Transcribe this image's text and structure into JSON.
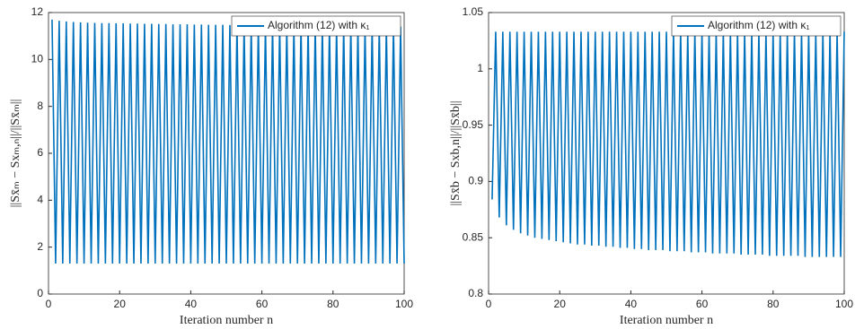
{
  "chart_data": [
    {
      "type": "line",
      "xlabel": "Iteration number n",
      "ylabel": "||Sx̄ₘ − Sxₘ,ₙ||/||Sx̄ₘ||",
      "legend": "upper right",
      "x": [
        1,
        2,
        3,
        4,
        5,
        6,
        7,
        8,
        9,
        10,
        11,
        12,
        13,
        14,
        15,
        16,
        17,
        18,
        19,
        20,
        21,
        22,
        23,
        24,
        25,
        26,
        27,
        28,
        29,
        30,
        31,
        32,
        33,
        34,
        35,
        36,
        37,
        38,
        39,
        40,
        41,
        42,
        43,
        44,
        45,
        46,
        47,
        48,
        49,
        50,
        51,
        52,
        53,
        54,
        55,
        56,
        57,
        58,
        59,
        60,
        61,
        62,
        63,
        64,
        65,
        66,
        67,
        68,
        69,
        70,
        71,
        72,
        73,
        74,
        75,
        76,
        77,
        78,
        79,
        80,
        81,
        82,
        83,
        84,
        85,
        86,
        87,
        88,
        89,
        90,
        91,
        92,
        93,
        94,
        95,
        96,
        97,
        98,
        99,
        100
      ],
      "series": [
        {
          "name": "Algorithm (12) with κ₁",
          "color": "#0072bd",
          "values": [
            11.7,
            1.3,
            11.65,
            1.3,
            11.62,
            1.3,
            11.6,
            1.3,
            11.58,
            1.3,
            11.57,
            1.3,
            11.56,
            1.3,
            11.55,
            1.3,
            11.55,
            1.3,
            11.54,
            1.3,
            11.54,
            1.3,
            11.53,
            1.3,
            11.53,
            1.3,
            11.52,
            1.3,
            11.52,
            1.3,
            11.51,
            1.3,
            11.51,
            1.3,
            11.5,
            1.3,
            11.5,
            1.3,
            11.5,
            1.3,
            11.49,
            1.3,
            11.49,
            1.3,
            11.48,
            1.3,
            11.48,
            1.3,
            11.48,
            1.3,
            11.47,
            1.3,
            11.47,
            1.3,
            11.47,
            1.3,
            11.46,
            1.3,
            11.46,
            1.3,
            11.46,
            1.3,
            11.45,
            1.3,
            11.45,
            1.3,
            11.45,
            1.3,
            11.44,
            1.3,
            11.44,
            1.3,
            11.44,
            1.3,
            11.43,
            1.3,
            11.43,
            1.3,
            11.43,
            1.3,
            11.42,
            1.3,
            11.42,
            1.3,
            11.42,
            1.3,
            11.41,
            1.3,
            11.41,
            1.3,
            11.41,
            1.3,
            11.4,
            1.3,
            11.4,
            1.3,
            11.4,
            1.3,
            11.4,
            1.3
          ]
        }
      ],
      "xlim": [
        0,
        100
      ],
      "xticks": [
        0,
        20,
        40,
        60,
        80,
        100
      ],
      "ylim": [
        0,
        12
      ],
      "yticks": [
        0,
        2,
        4,
        6,
        8,
        10,
        12
      ]
    },
    {
      "type": "line",
      "xlabel": "Iteration number n",
      "ylabel": "||Sx̄b − Sxb,n||/||Sx̄b||",
      "legend": "upper right",
      "x": [
        1,
        2,
        3,
        4,
        5,
        6,
        7,
        8,
        9,
        10,
        11,
        12,
        13,
        14,
        15,
        16,
        17,
        18,
        19,
        20,
        21,
        22,
        23,
        24,
        25,
        26,
        27,
        28,
        29,
        30,
        31,
        32,
        33,
        34,
        35,
        36,
        37,
        38,
        39,
        40,
        41,
        42,
        43,
        44,
        45,
        46,
        47,
        48,
        49,
        50,
        51,
        52,
        53,
        54,
        55,
        56,
        57,
        58,
        59,
        60,
        61,
        62,
        63,
        64,
        65,
        66,
        67,
        68,
        69,
        70,
        71,
        72,
        73,
        74,
        75,
        76,
        77,
        78,
        79,
        80,
        81,
        82,
        83,
        84,
        85,
        86,
        87,
        88,
        89,
        90,
        91,
        92,
        93,
        94,
        95,
        96,
        97,
        98,
        99,
        100
      ],
      "series": [
        {
          "name": "Algorithm (12) with κ₁",
          "color": "#0072bd",
          "values": [
            0.884,
            1.033,
            0.868,
            1.033,
            0.861,
            1.033,
            0.857,
            1.033,
            0.854,
            1.033,
            0.852,
            1.033,
            0.85,
            1.033,
            0.849,
            1.033,
            0.848,
            1.033,
            0.847,
            1.033,
            0.846,
            1.033,
            0.845,
            1.033,
            0.844,
            1.033,
            0.844,
            1.033,
            0.843,
            1.033,
            0.843,
            1.033,
            0.842,
            1.033,
            0.842,
            1.033,
            0.841,
            1.033,
            0.841,
            1.033,
            0.84,
            1.033,
            0.84,
            1.033,
            0.839,
            1.033,
            0.839,
            1.033,
            0.839,
            1.033,
            0.838,
            1.033,
            0.838,
            1.033,
            0.838,
            1.033,
            0.837,
            1.033,
            0.837,
            1.033,
            0.837,
            1.033,
            0.836,
            1.033,
            0.836,
            1.033,
            0.836,
            1.033,
            0.836,
            1.033,
            0.835,
            1.033,
            0.835,
            1.033,
            0.835,
            1.033,
            0.835,
            1.033,
            0.834,
            1.033,
            0.834,
            1.033,
            0.834,
            1.033,
            0.834,
            1.033,
            0.834,
            1.033,
            0.833,
            1.033,
            0.833,
            1.033,
            0.833,
            1.033,
            0.833,
            1.033,
            0.833,
            1.033,
            0.833,
            1.033
          ]
        }
      ],
      "xlim": [
        0,
        100
      ],
      "xticks": [
        0,
        20,
        40,
        60,
        80,
        100
      ],
      "ylim": [
        0.8,
        1.05
      ],
      "yticks": [
        0.8,
        0.85,
        0.9,
        0.95,
        1,
        1.05
      ]
    }
  ]
}
